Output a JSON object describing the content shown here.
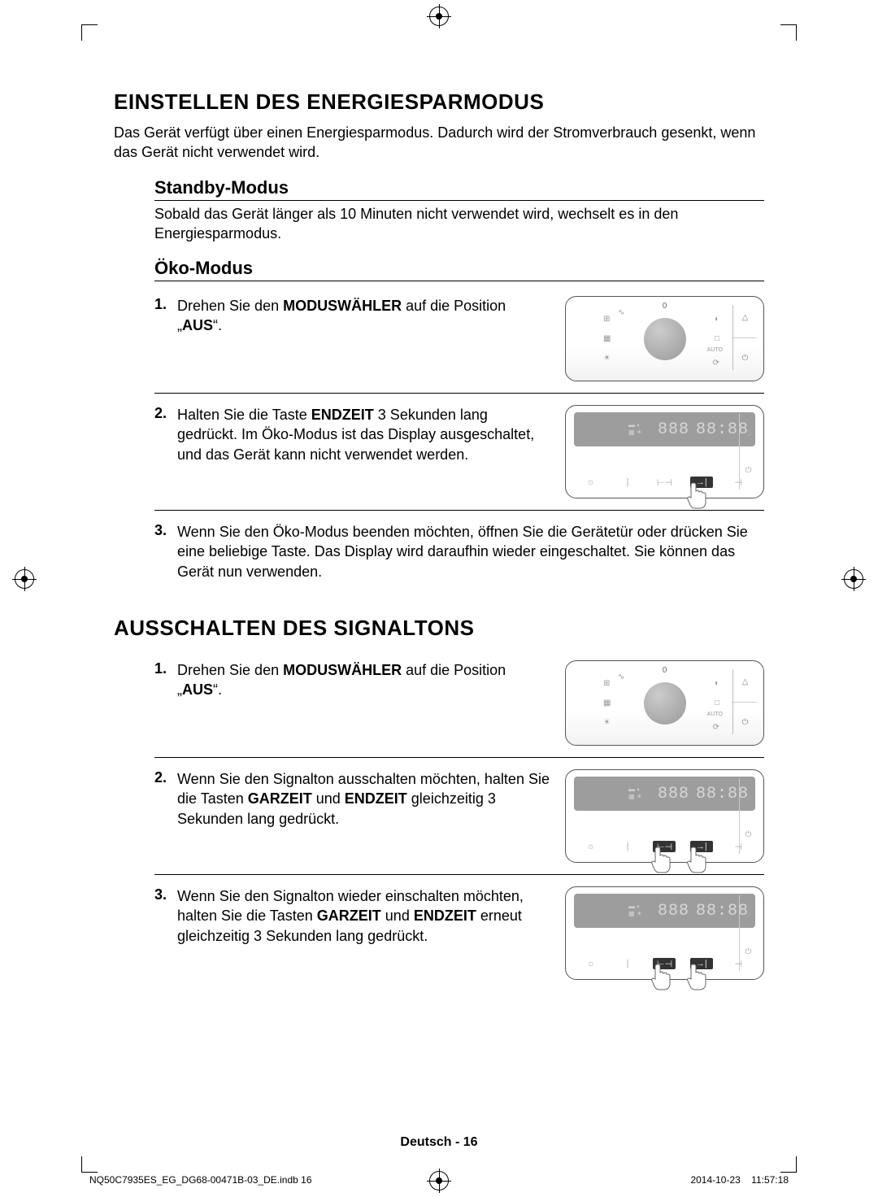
{
  "h1_energy": "EINSTELLEN DES ENERGIESPARMODUS",
  "lead_energy": "Das Gerät verfügt über einen Energiesparmodus. Dadurch wird der Stromverbrauch gesenkt, wenn das Gerät nicht verwendet wird.",
  "h2_standby": "Standby-Modus",
  "standby_body": "Sobald das Gerät länger als 10 Minuten nicht verwendet wird, wechselt es in den Energiesparmodus.",
  "h2_eco": "Öko-Modus",
  "eco_steps": [
    {
      "n": "1.",
      "html": "Drehen Sie den <b>MODUSWÄHLER</b> auf die Position „<b>AUS</b>“."
    },
    {
      "n": "2.",
      "html": "Halten Sie die Taste <b>ENDZEIT</b> 3 Sekunden lang gedrückt. Im Öko-Modus ist das Display ausgeschaltet, und das Gerät kann nicht verwendet werden."
    },
    {
      "n": "3.",
      "html": "Wenn Sie den Öko-Modus beenden möchten, öffnen Sie die Gerätetür oder drücken Sie eine beliebige Taste. Das Display wird daraufhin wieder eingeschaltet. Sie können das Gerät nun verwenden."
    }
  ],
  "h1_signal": "AUSSCHALTEN DES SIGNALTONS",
  "signal_steps": [
    {
      "n": "1.",
      "html": "Drehen Sie den <b>MODUSWÄHLER</b> auf die Position „<b>AUS</b>“."
    },
    {
      "n": "2.",
      "html": "Wenn Sie den Signalton ausschalten möchten, halten Sie die Tasten <b>GARZEIT</b> und <b>ENDZEIT</b> gleichzeitig 3 Sekunden lang gedrückt."
    },
    {
      "n": "3.",
      "html": "Wenn Sie den Signalton wieder einschalten möchten, halten Sie die Tasten <b>GARZEIT</b> und <b>ENDZEIT</b> erneut gleichzeitig 3 Sekunden lang gedrückt."
    }
  ],
  "lcd_text1": "888",
  "lcd_text2": "88:88",
  "footer": "Deutsch - 16",
  "imprint_left": "NQ50C7935ES_EG_DG68-00471B-03_DE.indb   16",
  "imprint_date": "2014-10-23",
  "imprint_time": "11:57:18"
}
